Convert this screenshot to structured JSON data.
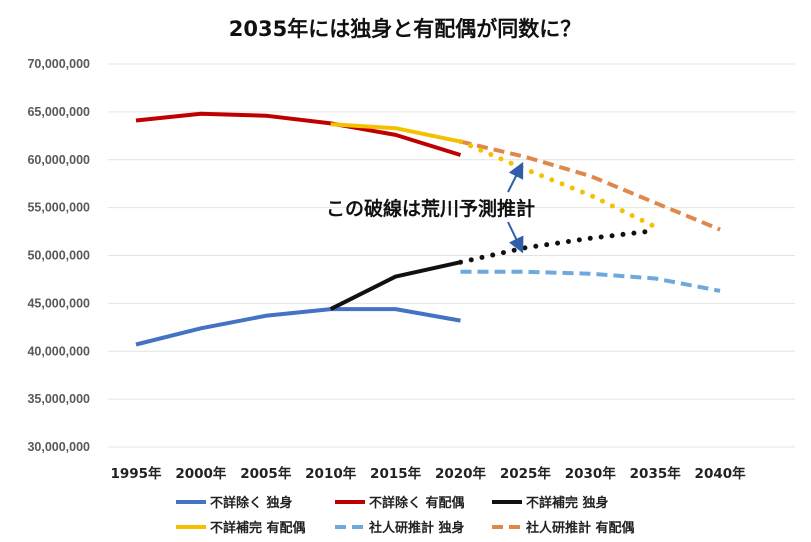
{
  "chart_data": {
    "type": "line",
    "title": "2035年には独身と有配偶が同数に？",
    "x_categories": [
      "1995年",
      "2000年",
      "2005年",
      "2010年",
      "2015年",
      "2020年",
      "2025年",
      "2030年",
      "2035年",
      "2040年"
    ],
    "y_ticks": [
      "30,000,000",
      "35,000,000",
      "40,000,000",
      "45,000,000",
      "50,000,000",
      "55,000,000",
      "60,000,000",
      "65,000,000",
      "70,000,000"
    ],
    "ylim": [
      30000000,
      70000000
    ],
    "grid": true,
    "legend_position": "bottom",
    "series": [
      {
        "name": "不詳除く 独身",
        "color": "#4472c4",
        "style": "solid",
        "points": [
          [
            "1995年",
            40700000
          ],
          [
            "2000年",
            42400000
          ],
          [
            "2005年",
            43700000
          ],
          [
            "2010年",
            44400000
          ],
          [
            "2015年",
            44400000
          ],
          [
            "2020年",
            43200000
          ]
        ]
      },
      {
        "name": "不詳除く 有配偶",
        "color": "#c00000",
        "style": "solid",
        "points": [
          [
            "1995年",
            64100000
          ],
          [
            "2000年",
            64800000
          ],
          [
            "2005年",
            64600000
          ],
          [
            "2010年",
            63800000
          ],
          [
            "2015年",
            62600000
          ],
          [
            "2020年",
            60500000
          ]
        ]
      },
      {
        "name": "不詳補完 独身",
        "color": "#111111",
        "style": "solid",
        "points": [
          [
            "2010年",
            44400000
          ],
          [
            "2015年",
            47800000
          ],
          [
            "2020年",
            49300000
          ]
        ]
      },
      {
        "name": "不詳補完 有配偶",
        "color": "#f5c000",
        "style": "solid",
        "points": [
          [
            "2010年",
            63700000
          ],
          [
            "2015年",
            63300000
          ],
          [
            "2020年",
            61900000
          ]
        ]
      },
      {
        "name": "社人研推計 独身",
        "color": "#6fa8dc",
        "style": "dashed",
        "points": [
          [
            "2020年",
            48300000
          ],
          [
            "2025年",
            48300000
          ],
          [
            "2030年",
            48100000
          ],
          [
            "2035年",
            47600000
          ],
          [
            "2040年",
            46300000
          ]
        ]
      },
      {
        "name": "社人研推計 有配偶",
        "color": "#e0884a",
        "style": "dashed",
        "points": [
          [
            "2020年",
            61900000
          ],
          [
            "2025年",
            60300000
          ],
          [
            "2030年",
            58300000
          ],
          [
            "2035年",
            55500000
          ],
          [
            "2040年",
            52700000
          ]
        ]
      },
      {
        "name": "荒川予測 独身",
        "color": "#111111",
        "style": "dotted",
        "in_legend": false,
        "points": [
          [
            "2020年",
            49300000
          ],
          [
            "2025年",
            50800000
          ],
          [
            "2030年",
            51800000
          ],
          [
            "2035年",
            52600000
          ]
        ]
      },
      {
        "name": "荒川予測 有配偶",
        "color": "#f5c000",
        "style": "dotted",
        "in_legend": false,
        "points": [
          [
            "2020年",
            61900000
          ],
          [
            "2025年",
            59000000
          ],
          [
            "2030年",
            56300000
          ],
          [
            "2035年",
            53000000
          ]
        ]
      }
    ],
    "annotation": {
      "text": "この破線は荒川予測推計",
      "arrows_to": [
        [
          "2025年",
          59400000
        ],
        [
          "2025年",
          50600000
        ]
      ]
    }
  }
}
